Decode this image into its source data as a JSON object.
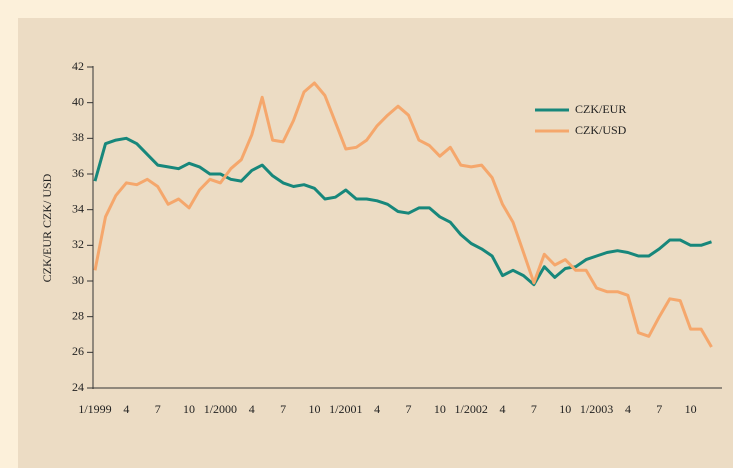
{
  "chart_data": {
    "type": "line",
    "y_axis_label": "CZK/EUR  CZK/ USD",
    "categories": [
      "1/1999",
      null,
      null,
      "4",
      null,
      null,
      "7",
      null,
      null,
      "10",
      null,
      null,
      "1/2000",
      null,
      null,
      "4",
      null,
      null,
      "7",
      null,
      null,
      "10",
      null,
      null,
      "1/2001",
      null,
      null,
      "4",
      null,
      null,
      "7",
      null,
      null,
      "10",
      null,
      null,
      "1/2002",
      null,
      null,
      "4",
      null,
      null,
      "7",
      null,
      null,
      "10",
      null,
      null,
      "1/2003",
      null,
      null,
      "4",
      null,
      null,
      "7",
      null,
      null,
      "10",
      null,
      null
    ],
    "series": [
      {
        "name": "CZK/EUR",
        "color": "#17877b",
        "values": [
          35.6,
          37.7,
          37.9,
          38.0,
          37.7,
          37.1,
          36.5,
          36.4,
          36.3,
          36.6,
          36.4,
          36.0,
          36.0,
          35.7,
          35.6,
          36.2,
          36.5,
          35.9,
          35.5,
          35.3,
          35.4,
          35.2,
          34.6,
          34.7,
          35.1,
          34.6,
          34.6,
          34.5,
          34.3,
          33.9,
          33.8,
          34.1,
          34.1,
          33.6,
          33.3,
          32.6,
          32.1,
          31.8,
          31.4,
          30.3,
          30.6,
          30.3,
          29.8,
          30.8,
          30.2,
          30.7,
          30.8,
          31.2,
          31.4,
          31.6,
          31.7,
          31.6,
          31.4,
          31.4,
          31.8,
          32.3,
          32.3,
          32.0,
          32.0,
          32.2
        ]
      },
      {
        "name": "CZK/USD",
        "color": "#f5a76c",
        "values": [
          30.6,
          33.6,
          34.8,
          35.5,
          35.4,
          35.7,
          35.3,
          34.3,
          34.6,
          34.1,
          35.1,
          35.7,
          35.5,
          36.3,
          36.8,
          38.2,
          40.3,
          37.9,
          37.8,
          39.0,
          40.6,
          41.1,
          40.4,
          38.9,
          37.4,
          37.5,
          37.9,
          38.7,
          39.3,
          39.8,
          39.3,
          37.9,
          37.6,
          37.0,
          37.5,
          36.5,
          36.4,
          36.5,
          35.8,
          34.3,
          33.3,
          31.6,
          29.9,
          31.5,
          30.9,
          31.2,
          30.6,
          30.6,
          29.6,
          29.4,
          29.4,
          29.2,
          27.1,
          26.9,
          28.0,
          29.0,
          28.9,
          27.3,
          27.3,
          26.3
        ]
      }
    ],
    "ylim": [
      24,
      42
    ],
    "yticks": [
      24,
      26,
      28,
      30,
      32,
      34,
      36,
      38,
      40,
      42
    ],
    "legend": "upper right"
  }
}
